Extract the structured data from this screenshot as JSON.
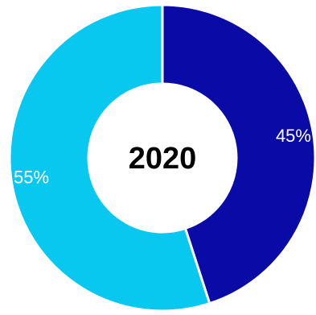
{
  "chart_data": {
    "type": "pie",
    "title": "2020",
    "categories": [
      "",
      ""
    ],
    "values": [
      45,
      55
    ],
    "value_labels": [
      "45%",
      "55%"
    ],
    "colors": [
      "#0A0AA6",
      "#08C8EF"
    ],
    "donut": true,
    "center_label": "2020"
  }
}
